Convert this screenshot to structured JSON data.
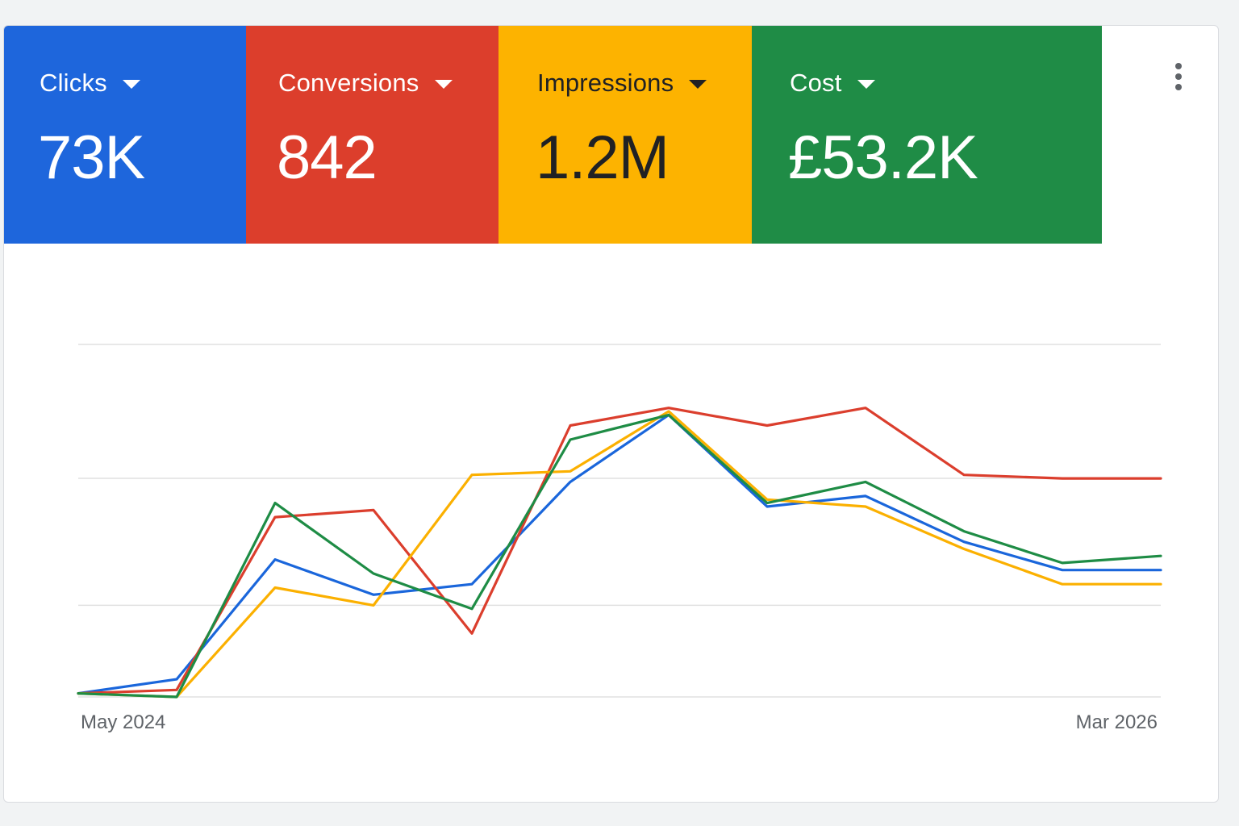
{
  "colors": {
    "clicks": "#1a66db",
    "conversions": "#db3e2d",
    "impressions": "#fbb000",
    "cost": "#1e8c45",
    "dark_text": "#202124",
    "light_text": "#ffffff",
    "gridline": "#e0e0e0"
  },
  "tiles": [
    {
      "label": "Clicks",
      "value": "73K",
      "color": "#1e66dc",
      "text_color": "#ffffff"
    },
    {
      "label": "Conversions",
      "value": "842",
      "color": "#dc3e2c",
      "text_color": "#ffffff"
    },
    {
      "label": "Impressions",
      "value": "1.2M",
      "color": "#fdb300",
      "text_color": "#202124"
    },
    {
      "label": "Cost",
      "value": "£53.2K",
      "color": "#1f8c46",
      "text_color": "#ffffff"
    }
  ],
  "menu": {
    "icon": "more-vert-icon"
  },
  "chart_data": {
    "type": "line",
    "x": [
      "May 2024",
      "",
      "",
      "",
      "",
      "",
      "",
      "",
      "",
      "",
      "",
      "Mar 2026"
    ],
    "x_tick_labels": [
      "May 2024",
      "Mar 2026"
    ],
    "grid": true,
    "ylim": [
      0,
      100
    ],
    "series": [
      {
        "key": "clicks",
        "color": "#1a66db",
        "values": [
          1,
          5,
          39,
          29,
          32,
          61,
          80,
          54,
          57,
          44,
          36,
          36
        ]
      },
      {
        "key": "conversions",
        "color": "#db3e2d",
        "values": [
          1,
          2,
          51,
          53,
          18,
          77,
          82,
          77,
          82,
          63,
          62,
          62
        ]
      },
      {
        "key": "impressions",
        "color": "#fbb000",
        "values": [
          1,
          0,
          31,
          26,
          63,
          64,
          81,
          56,
          54,
          42,
          32,
          32
        ]
      },
      {
        "key": "cost",
        "color": "#1e8c45",
        "values": [
          1,
          0,
          55,
          35,
          25,
          73,
          80,
          55,
          61,
          47,
          38,
          40
        ]
      }
    ]
  }
}
